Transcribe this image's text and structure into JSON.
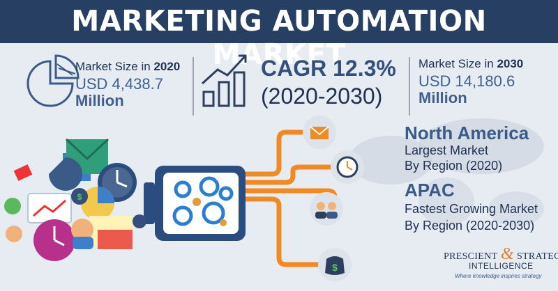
{
  "title": "MARKETING AUTOMATION MARKET",
  "market_2020": {
    "label_prefix": "Market Size in ",
    "year": "2020",
    "value": "USD 4,438.7",
    "unit": "Million"
  },
  "cagr": {
    "label": "CAGR 12.3%",
    "period": "(2020-2030)"
  },
  "market_2030": {
    "label_prefix": "Market Size in ",
    "year": "2030",
    "value": "USD 14,180.6",
    "unit": "Million"
  },
  "regions": [
    {
      "name": "North America",
      "line1": "Largest Market",
      "line2": "By Region (2020)"
    },
    {
      "name": "APAC",
      "line1": "Fastest Growing Market",
      "line2": "By Region (2020-2030)"
    }
  ],
  "logo": {
    "left": "PRESCIENT",
    "amp": "&",
    "right": "STRATEGIC",
    "sub": "INTELLIGENCE",
    "tagline": "Where knowledge inspires strategy"
  },
  "colors": {
    "banner": "#263f62",
    "accent_orange": "#f08a24",
    "machine_blue": "#2b4c7e",
    "background": "#e7ecf2"
  },
  "icons": [
    "pie-chart-icon",
    "growth-chart-icon",
    "email-icon",
    "clock-icon",
    "users-icon",
    "dollar-bag-icon",
    "gears-icon"
  ]
}
